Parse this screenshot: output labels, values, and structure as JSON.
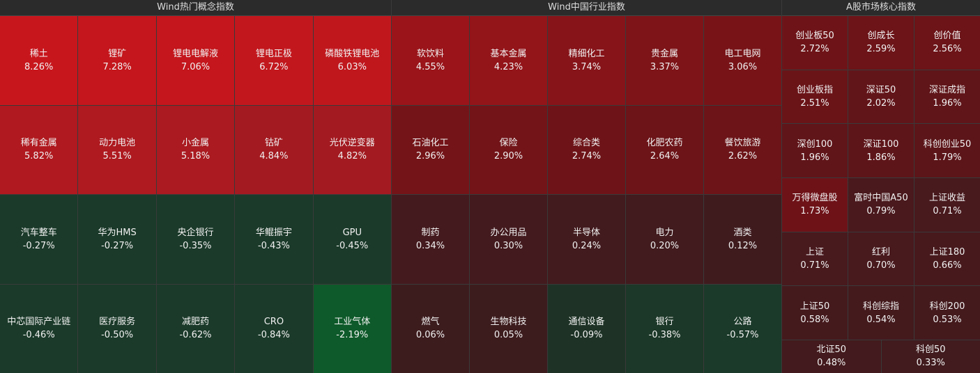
{
  "panels": [
    {
      "title": "Wind热门概念指数",
      "tiles": [
        {
          "name": "稀土",
          "change": "8.26%",
          "color": "#c8161d"
        },
        {
          "name": "锂矿",
          "change": "7.28%",
          "color": "#c4161c"
        },
        {
          "name": "锂电电解液",
          "change": "7.06%",
          "color": "#c4161c"
        },
        {
          "name": "锂电正极",
          "change": "6.72%",
          "color": "#c2171d"
        },
        {
          "name": "磷酸铁锂电池",
          "change": "6.03%",
          "color": "#c0171d"
        },
        {
          "name": "稀有金属",
          "change": "5.82%",
          "color": "#b0191f"
        },
        {
          "name": "动力电池",
          "change": "5.51%",
          "color": "#ae1a20"
        },
        {
          "name": "小金属",
          "change": "5.18%",
          "color": "#aa1a20"
        },
        {
          "name": "钴矿",
          "change": "4.84%",
          "color": "#a31a20"
        },
        {
          "name": "光伏逆变器",
          "change": "4.82%",
          "color": "#a31a20"
        },
        {
          "name": "汽车整车",
          "change": "-0.27%",
          "color": "#1b3a2a"
        },
        {
          "name": "华为HMS",
          "change": "-0.27%",
          "color": "#1b3a2a"
        },
        {
          "name": "央企银行",
          "change": "-0.35%",
          "color": "#1b3a2a"
        },
        {
          "name": "华鲲振宇",
          "change": "-0.43%",
          "color": "#1b3a2a"
        },
        {
          "name": "GPU",
          "change": "-0.45%",
          "color": "#1b3a2a"
        },
        {
          "name": "中芯国际产业链",
          "change": "-0.46%",
          "color": "#1b3a2a"
        },
        {
          "name": "医疗服务",
          "change": "-0.50%",
          "color": "#1b3a2a"
        },
        {
          "name": "减肥药",
          "change": "-0.62%",
          "color": "#1b3a2a"
        },
        {
          "name": "CRO",
          "change": "-0.84%",
          "color": "#1b3a2a"
        },
        {
          "name": "工业气体",
          "change": "-2.19%",
          "color": "#0e5a2a"
        }
      ]
    },
    {
      "title": "Wind中国行业指数",
      "tiles": [
        {
          "name": "软饮料",
          "change": "4.55%",
          "color": "#9a1419"
        },
        {
          "name": "基本金属",
          "change": "4.23%",
          "color": "#931419"
        },
        {
          "name": "精细化工",
          "change": "3.74%",
          "color": "#861419"
        },
        {
          "name": "贵金属",
          "change": "3.37%",
          "color": "#7e1418"
        },
        {
          "name": "电工电网",
          "change": "3.06%",
          "color": "#781418"
        },
        {
          "name": "石油化工",
          "change": "2.96%",
          "color": "#741418"
        },
        {
          "name": "保险",
          "change": "2.90%",
          "color": "#721418"
        },
        {
          "name": "综合类",
          "change": "2.74%",
          "color": "#6e1418"
        },
        {
          "name": "化肥农药",
          "change": "2.64%",
          "color": "#6c1418"
        },
        {
          "name": "餐饮旅游",
          "change": "2.62%",
          "color": "#6c1418"
        },
        {
          "name": "制药",
          "change": "0.34%",
          "color": "#441a1e"
        },
        {
          "name": "办公用品",
          "change": "0.30%",
          "color": "#431a1e"
        },
        {
          "name": "半导体",
          "change": "0.24%",
          "color": "#421b1e"
        },
        {
          "name": "电力",
          "change": "0.20%",
          "color": "#411b1e"
        },
        {
          "name": "酒类",
          "change": "0.12%",
          "color": "#3f1b1e"
        },
        {
          "name": "燃气",
          "change": "0.06%",
          "color": "#3d1c1e"
        },
        {
          "name": "生物科技",
          "change": "0.05%",
          "color": "#3d1c1e"
        },
        {
          "name": "通信设备",
          "change": "-0.09%",
          "color": "#1e3326"
        },
        {
          "name": "银行",
          "change": "-0.38%",
          "color": "#1c3828"
        },
        {
          "name": "公路",
          "change": "-0.57%",
          "color": "#1b3a2a"
        }
      ]
    },
    {
      "title": "A股市场核心指数",
      "tiles": [
        {
          "name": "创业板50",
          "change": "2.72%",
          "color": "#6e1418"
        },
        {
          "name": "创成长",
          "change": "2.59%",
          "color": "#6c1418"
        },
        {
          "name": "创价值",
          "change": "2.56%",
          "color": "#6c1418"
        },
        {
          "name": "创业板指",
          "change": "2.51%",
          "color": "#6a1418"
        },
        {
          "name": "深证50",
          "change": "2.02%",
          "color": "#621519"
        },
        {
          "name": "深证成指",
          "change": "1.96%",
          "color": "#601519"
        },
        {
          "name": "深创100",
          "change": "1.96%",
          "color": "#601519"
        },
        {
          "name": "深证100",
          "change": "1.86%",
          "color": "#5e1519"
        },
        {
          "name": "科创创业50",
          "change": "1.79%",
          "color": "#5c1519"
        },
        {
          "name": "万得微盘股",
          "change": "1.73%",
          "color": "#6e1218"
        },
        {
          "name": "富时中国A50",
          "change": "0.79%",
          "color": "#4a191d"
        },
        {
          "name": "上证收益",
          "change": "0.71%",
          "color": "#48191d"
        },
        {
          "name": "上证",
          "change": "0.71%",
          "color": "#48191d"
        },
        {
          "name": "红利",
          "change": "0.70%",
          "color": "#48191d"
        },
        {
          "name": "上证180",
          "change": "0.66%",
          "color": "#47191d"
        },
        {
          "name": "上证50",
          "change": "0.58%",
          "color": "#451a1d"
        },
        {
          "name": "科创综指",
          "change": "0.54%",
          "color": "#441a1d"
        },
        {
          "name": "科创200",
          "change": "0.53%",
          "color": "#441a1d"
        },
        {
          "name": "北证50",
          "change": "0.48%",
          "color": "#431a1d"
        },
        {
          "name": "科创50",
          "change": "0.33%",
          "color": "#411b1e"
        }
      ]
    }
  ]
}
